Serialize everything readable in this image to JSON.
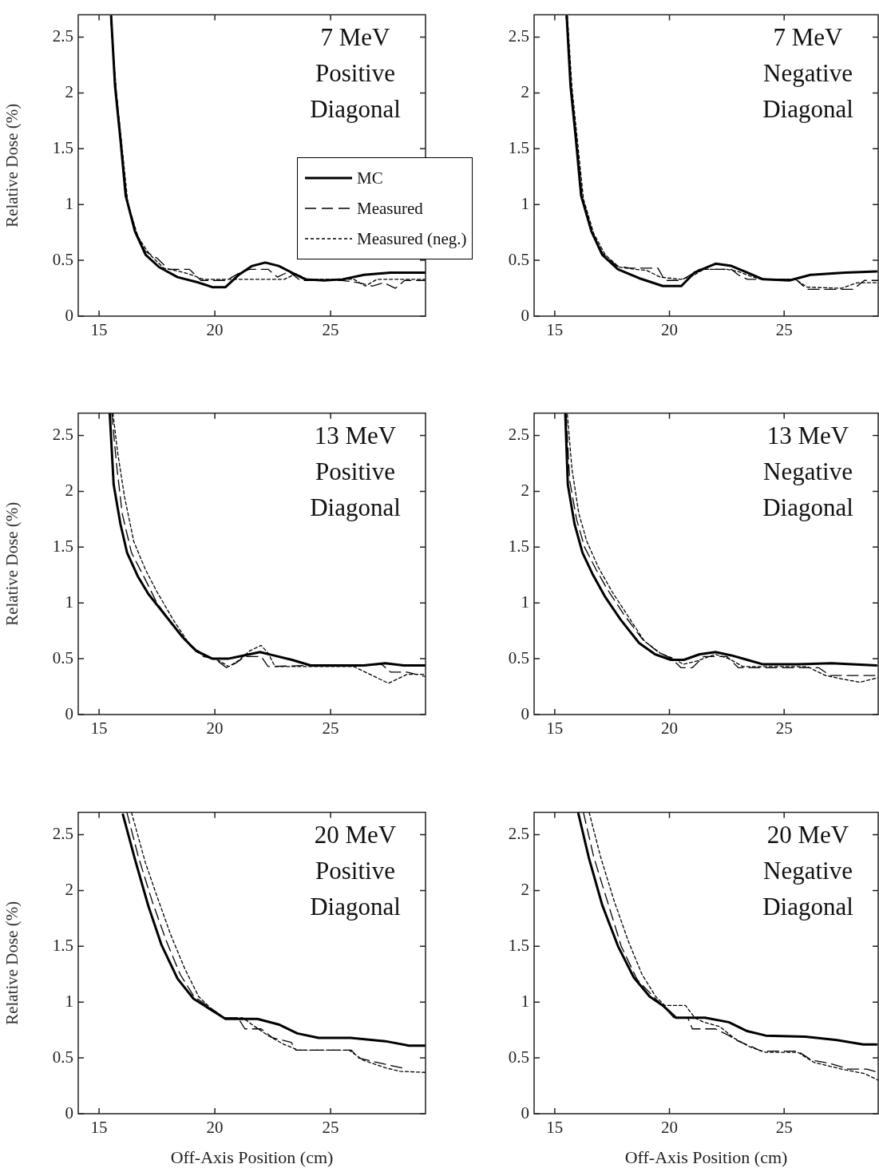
{
  "chart_data": [
    {
      "type": "line",
      "ylabel": "Relative Dose (%)",
      "annotations": [
        "7 MeV",
        "Positive",
        "Diagonal"
      ],
      "xlim": [
        14.1,
        29.1
      ],
      "ylim": [
        0,
        2.7
      ],
      "xticks": [
        15,
        20,
        25
      ],
      "yticks": [
        0,
        0.5,
        1,
        1.5,
        2,
        2.5
      ],
      "legend": "center right",
      "marker": "none",
      "series": [
        {
          "name": "MC",
          "color": "#000000",
          "line_style": "solid",
          "x": [
            15.52,
            15.69,
            15.92,
            16.15,
            16.55,
            17.01,
            17.59,
            18.39,
            19.31,
            19.89,
            20.46,
            21.03,
            21.61,
            22.18,
            22.76,
            23.33,
            23.91,
            24.71,
            25.52,
            26.44,
            27.59,
            29.08
          ],
          "values": [
            2.69,
            2.06,
            1.59,
            1.08,
            0.76,
            0.55,
            0.44,
            0.35,
            0.3,
            0.26,
            0.26,
            0.37,
            0.45,
            0.48,
            0.45,
            0.39,
            0.33,
            0.32,
            0.33,
            0.37,
            0.39,
            0.39
          ]
        },
        {
          "name": "Measured",
          "color": "#000000",
          "line_style": "dashed",
          "x": [
            15.5,
            15.7,
            15.95,
            16.2,
            16.6,
            17.0,
            17.5,
            18.0,
            18.9,
            19.4,
            20.5,
            21.0,
            21.5,
            22.3,
            22.7,
            23.2,
            23.7,
            25.5,
            26.2,
            26.8,
            27.3,
            27.8,
            28.2,
            29.1
          ],
          "values": [
            2.69,
            2.1,
            1.55,
            1.05,
            0.75,
            0.58,
            0.52,
            0.42,
            0.42,
            0.32,
            0.32,
            0.38,
            0.42,
            0.42,
            0.35,
            0.4,
            0.32,
            0.32,
            0.3,
            0.27,
            0.3,
            0.25,
            0.32,
            0.32
          ]
        },
        {
          "name": "Measured (neg.)",
          "color": "#000000",
          "line_style": "dotted",
          "x": [
            15.5,
            15.75,
            16.0,
            16.25,
            16.7,
            17.2,
            17.8,
            18.5,
            19.0,
            19.5,
            20.5,
            21.0,
            23.0,
            23.5,
            24.0,
            26.0,
            26.5,
            27.0,
            29.1
          ],
          "values": [
            2.69,
            2.0,
            1.5,
            1.0,
            0.7,
            0.55,
            0.43,
            0.4,
            0.37,
            0.33,
            0.33,
            0.33,
            0.33,
            0.38,
            0.33,
            0.33,
            0.27,
            0.33,
            0.33
          ]
        }
      ]
    },
    {
      "type": "line",
      "annotations": [
        "7 MeV",
        "Negative",
        "Diagonal"
      ],
      "xlim": [
        14.1,
        29.1
      ],
      "ylim": [
        0,
        2.7
      ],
      "xticks": [
        15,
        20,
        25
      ],
      "yticks": [
        0,
        0.5,
        1,
        1.5,
        2,
        2.5
      ],
      "marker": "none",
      "series": [
        {
          "color": "#000000",
          "line_style": "solid",
          "x": [
            15.52,
            15.69,
            15.92,
            16.15,
            16.6,
            17.07,
            17.76,
            18.68,
            19.71,
            20.52,
            21.09,
            22.01,
            22.7,
            23.39,
            24.08,
            25.23,
            26.15,
            27.64,
            29.02
          ],
          "values": [
            2.69,
            2.06,
            1.59,
            1.08,
            0.76,
            0.55,
            0.42,
            0.34,
            0.27,
            0.27,
            0.39,
            0.47,
            0.45,
            0.39,
            0.33,
            0.32,
            0.37,
            0.39,
            0.4
          ]
        },
        {
          "color": "#000000",
          "line_style": "dashed",
          "x": [
            15.5,
            15.7,
            15.95,
            16.2,
            16.6,
            17.1,
            17.7,
            18.3,
            19.5,
            19.8,
            20.5,
            21.0,
            21.3,
            22.7,
            23.0,
            23.4,
            25.5,
            26.0,
            28.0,
            28.5,
            29.1
          ],
          "values": [
            2.69,
            2.08,
            1.57,
            1.06,
            0.76,
            0.56,
            0.45,
            0.43,
            0.43,
            0.32,
            0.32,
            0.38,
            0.42,
            0.42,
            0.37,
            0.33,
            0.33,
            0.24,
            0.24,
            0.32,
            0.32
          ]
        },
        {
          "color": "#000000",
          "line_style": "dotted",
          "x": [
            15.55,
            15.75,
            16.0,
            16.25,
            16.7,
            17.2,
            17.8,
            18.5,
            19.0,
            19.6,
            20.5,
            21.0,
            21.5,
            22.5,
            23.0,
            23.5,
            24.0,
            25.5,
            26.0,
            27.5,
            28.2,
            29.1
          ],
          "values": [
            2.69,
            2.05,
            1.55,
            1.05,
            0.74,
            0.55,
            0.44,
            0.42,
            0.41,
            0.35,
            0.33,
            0.36,
            0.42,
            0.42,
            0.4,
            0.36,
            0.33,
            0.33,
            0.26,
            0.25,
            0.3,
            0.3
          ]
        }
      ]
    },
    {
      "type": "line",
      "ylabel": "Relative Dose (%)",
      "annotations": [
        "13 MeV",
        "Positive",
        "Diagonal"
      ],
      "xlim": [
        14.1,
        29.1
      ],
      "ylim": [
        0,
        2.7
      ],
      "xticks": [
        15,
        20,
        25
      ],
      "yticks": [
        0,
        0.5,
        1,
        1.5,
        2,
        2.5
      ],
      "marker": "none",
      "series": [
        {
          "color": "#000000",
          "line_style": "solid",
          "x": [
            15.46,
            15.63,
            15.92,
            16.21,
            16.67,
            17.13,
            17.82,
            18.62,
            19.2,
            19.89,
            20.57,
            21.26,
            21.95,
            22.53,
            23.33,
            24.14,
            25.29,
            26.44,
            27.36,
            28.16,
            29.08
          ],
          "values": [
            2.7,
            2.06,
            1.71,
            1.45,
            1.24,
            1.08,
            0.9,
            0.69,
            0.57,
            0.5,
            0.5,
            0.53,
            0.56,
            0.53,
            0.49,
            0.44,
            0.44,
            0.44,
            0.46,
            0.44,
            0.44
          ]
        },
        {
          "color": "#000000",
          "line_style": "dashed",
          "x": [
            15.55,
            15.75,
            16.0,
            16.4,
            16.9,
            17.5,
            18.2,
            18.9,
            19.5,
            20.0,
            20.5,
            20.9,
            21.3,
            22.0,
            22.3,
            24.0,
            26.5,
            27.2,
            27.6,
            28.3,
            29.1
          ],
          "values": [
            2.7,
            2.25,
            1.8,
            1.45,
            1.25,
            1.0,
            0.8,
            0.62,
            0.52,
            0.5,
            0.42,
            0.46,
            0.52,
            0.52,
            0.43,
            0.44,
            0.44,
            0.45,
            0.38,
            0.38,
            0.34
          ]
        },
        {
          "color": "#000000",
          "line_style": "dotted",
          "x": [
            15.6,
            15.8,
            16.1,
            16.5,
            17.0,
            17.5,
            18.2,
            18.9,
            19.6,
            20.2,
            20.6,
            21.0,
            21.5,
            22.0,
            22.3,
            22.6,
            24.0,
            26.0,
            26.8,
            27.5,
            28.3,
            29.1
          ],
          "values": [
            2.7,
            2.35,
            1.95,
            1.55,
            1.3,
            1.1,
            0.85,
            0.63,
            0.52,
            0.48,
            0.43,
            0.48,
            0.57,
            0.62,
            0.55,
            0.43,
            0.43,
            0.43,
            0.35,
            0.28,
            0.36,
            0.36
          ]
        }
      ]
    },
    {
      "type": "line",
      "annotations": [
        "13 MeV",
        "Negative",
        "Diagonal"
      ],
      "xlim": [
        14.1,
        29.1
      ],
      "ylim": [
        0,
        2.7
      ],
      "xticks": [
        15,
        20,
        25
      ],
      "yticks": [
        0,
        0.5,
        1,
        1.5,
        2,
        2.5
      ],
      "marker": "none",
      "series": [
        {
          "color": "#000000",
          "line_style": "solid",
          "x": [
            15.46,
            15.57,
            15.86,
            16.21,
            16.67,
            17.18,
            17.87,
            18.68,
            19.37,
            20.06,
            20.63,
            21.32,
            22.01,
            22.7,
            23.39,
            24.08,
            25.57,
            27.07,
            29.02
          ],
          "values": [
            2.69,
            2.06,
            1.71,
            1.45,
            1.25,
            1.06,
            0.85,
            0.64,
            0.54,
            0.49,
            0.49,
            0.54,
            0.56,
            0.53,
            0.49,
            0.45,
            0.45,
            0.46,
            0.44
          ]
        },
        {
          "color": "#000000",
          "line_style": "dashed",
          "x": [
            15.5,
            15.65,
            15.95,
            16.3,
            16.8,
            17.3,
            18.0,
            18.8,
            19.5,
            20.1,
            20.5,
            21.0,
            21.5,
            22.5,
            23.0,
            26.5,
            27.0,
            29.1
          ],
          "values": [
            2.69,
            2.1,
            1.75,
            1.5,
            1.3,
            1.12,
            0.9,
            0.68,
            0.56,
            0.5,
            0.42,
            0.42,
            0.52,
            0.52,
            0.42,
            0.42,
            0.35,
            0.35
          ]
        },
        {
          "color": "#000000",
          "line_style": "dotted",
          "x": [
            15.55,
            15.75,
            16.05,
            16.4,
            16.9,
            17.5,
            18.2,
            18.9,
            19.6,
            20.2,
            20.6,
            21.2,
            22.0,
            22.6,
            23.2,
            26.0,
            26.8,
            27.5,
            28.3,
            29.1
          ],
          "values": [
            2.69,
            2.2,
            1.8,
            1.55,
            1.32,
            1.1,
            0.88,
            0.66,
            0.55,
            0.5,
            0.45,
            0.48,
            0.54,
            0.5,
            0.43,
            0.43,
            0.35,
            0.32,
            0.29,
            0.33
          ]
        }
      ]
    },
    {
      "type": "line",
      "xlabel": "Off-Axis Position (cm)",
      "ylabel": "Relative Dose (%)",
      "annotations": [
        "20 MeV",
        "Positive",
        "Diagonal"
      ],
      "xlim": [
        14.1,
        29.1
      ],
      "ylim": [
        0,
        2.7
      ],
      "xticks": [
        15,
        20,
        25
      ],
      "yticks": [
        0,
        0.5,
        1,
        1.5,
        2,
        2.5
      ],
      "marker": "none",
      "series": [
        {
          "color": "#000000",
          "line_style": "solid",
          "x": [
            16.03,
            16.55,
            17.13,
            17.7,
            18.39,
            19.08,
            19.77,
            20.46,
            21.84,
            22.76,
            23.56,
            24.48,
            25.86,
            27.36,
            28.39,
            29.08
          ],
          "values": [
            2.68,
            2.28,
            1.86,
            1.51,
            1.21,
            1.03,
            0.94,
            0.85,
            0.85,
            0.8,
            0.72,
            0.68,
            0.68,
            0.65,
            0.61,
            0.61
          ]
        },
        {
          "color": "#000000",
          "line_style": "dashed",
          "x": [
            16.2,
            16.7,
            17.3,
            17.9,
            18.5,
            19.1,
            19.8,
            20.4,
            21.0,
            21.3,
            22.0,
            22.5,
            23.3,
            23.5,
            25.9,
            26.2,
            27.0,
            28.1
          ],
          "values": [
            2.7,
            2.3,
            1.9,
            1.55,
            1.25,
            1.05,
            0.95,
            0.86,
            0.86,
            0.76,
            0.76,
            0.68,
            0.64,
            0.57,
            0.57,
            0.5,
            0.46,
            0.41
          ]
        },
        {
          "color": "#000000",
          "line_style": "dotted",
          "x": [
            16.4,
            17.0,
            17.5,
            18.1,
            18.7,
            19.3,
            19.8,
            20.4,
            21.2,
            21.6,
            22.3,
            23.0,
            23.6,
            25.8,
            26.4,
            27.4,
            28.0,
            29.1
          ],
          "values": [
            2.7,
            2.25,
            1.95,
            1.6,
            1.3,
            1.05,
            0.95,
            0.86,
            0.86,
            0.8,
            0.7,
            0.62,
            0.57,
            0.57,
            0.48,
            0.41,
            0.38,
            0.37
          ]
        }
      ]
    },
    {
      "type": "line",
      "xlabel": "Off-Axis Position (cm)",
      "annotations": [
        "20 MeV",
        "Negative",
        "Diagonal"
      ],
      "xlim": [
        14.1,
        29.1
      ],
      "ylim": [
        0,
        2.7
      ],
      "xticks": [
        15,
        20,
        25
      ],
      "yticks": [
        0,
        0.5,
        1,
        1.5,
        2,
        2.5
      ],
      "marker": "none",
      "series": [
        {
          "color": "#000000",
          "line_style": "solid",
          "x": [
            16.03,
            16.49,
            17.07,
            17.76,
            18.45,
            19.14,
            19.71,
            20.29,
            21.55,
            22.59,
            23.39,
            24.2,
            25.92,
            27.3,
            28.45,
            29.02
          ],
          "values": [
            2.69,
            2.29,
            1.87,
            1.5,
            1.22,
            1.05,
            0.97,
            0.86,
            0.86,
            0.82,
            0.74,
            0.7,
            0.69,
            0.66,
            0.62,
            0.62
          ]
        },
        {
          "color": "#000000",
          "line_style": "dashed",
          "x": [
            16.25,
            16.7,
            17.3,
            17.9,
            18.6,
            19.3,
            19.8,
            20.2,
            20.8,
            21.0,
            22.0,
            22.6,
            23.0,
            23.6,
            24.0,
            25.6,
            26.2,
            27.0,
            27.8,
            28.6,
            29.1
          ],
          "values": [
            2.7,
            2.3,
            1.9,
            1.5,
            1.2,
            1.05,
            0.95,
            0.86,
            0.86,
            0.76,
            0.76,
            0.7,
            0.65,
            0.6,
            0.56,
            0.56,
            0.48,
            0.45,
            0.4,
            0.4,
            0.37
          ]
        },
        {
          "color": "#000000",
          "line_style": "dotted",
          "x": [
            16.5,
            17.0,
            17.6,
            18.2,
            18.8,
            19.4,
            19.8,
            20.7,
            21.1,
            21.5,
            22.2,
            22.8,
            23.5,
            24.2,
            25.6,
            26.3,
            27.5,
            28.5,
            29.1
          ],
          "values": [
            2.7,
            2.3,
            1.9,
            1.55,
            1.25,
            1.05,
            0.97,
            0.97,
            0.86,
            0.82,
            0.78,
            0.68,
            0.6,
            0.55,
            0.55,
            0.46,
            0.4,
            0.36,
            0.3
          ]
        }
      ]
    }
  ]
}
